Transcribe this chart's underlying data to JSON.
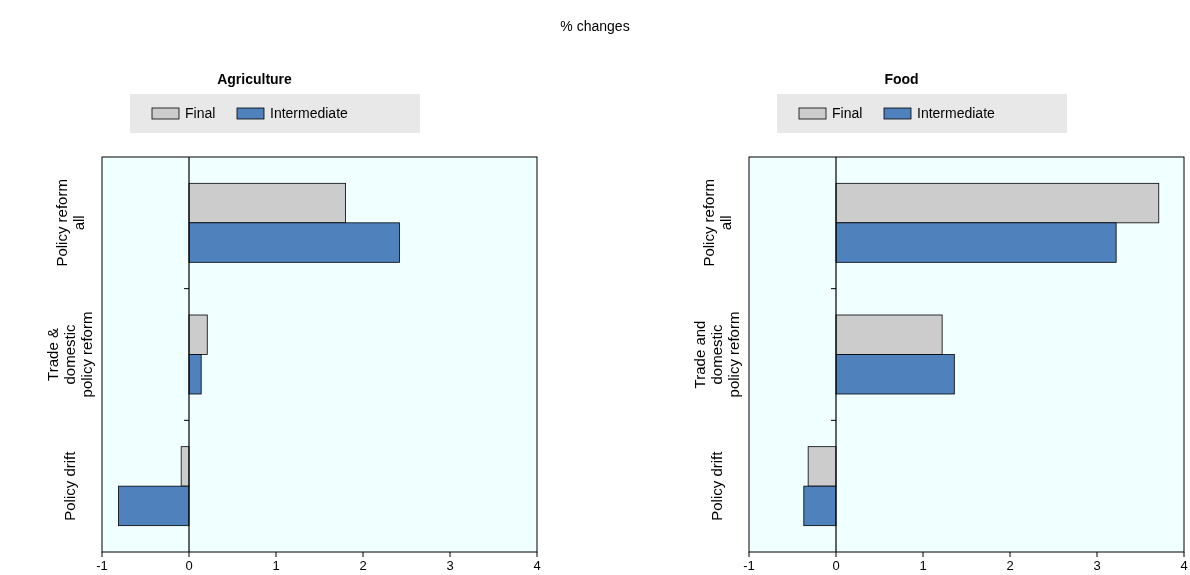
{
  "chart_data": [
    {
      "type": "bar",
      "orientation": "horizontal",
      "title": "Agriculture",
      "annotations": [
        "% changes"
      ],
      "categories": [
        "Policy reform\nall",
        "Trade &\ndomestic\npolicy reform",
        "Policy drift"
      ],
      "series": [
        {
          "name": "Final",
          "color": "#cccccc",
          "values": [
            1.8,
            0.21,
            -0.09
          ]
        },
        {
          "name": "Intermediate",
          "color": "#4f81bd",
          "values": [
            2.42,
            0.14,
            -0.81
          ]
        }
      ],
      "xlim": [
        -1,
        4
      ],
      "xticks": [
        -1,
        0,
        1,
        2,
        3,
        4
      ],
      "legend": "top"
    },
    {
      "type": "bar",
      "orientation": "horizontal",
      "title": "Food",
      "categories": [
        "Policy reform\nall",
        "Trade and\ndomestic\npolicy reform",
        "Policy drift"
      ],
      "series": [
        {
          "name": "Final",
          "color": "#cccccc",
          "values": [
            3.71,
            1.22,
            -0.32
          ]
        },
        {
          "name": "Intermediate",
          "color": "#4f81bd",
          "values": [
            3.22,
            1.36,
            -0.37
          ]
        }
      ],
      "xlim": [
        -1,
        4
      ],
      "xticks": [
        -1,
        0,
        1,
        2,
        3,
        4
      ],
      "legend": "top"
    }
  ]
}
